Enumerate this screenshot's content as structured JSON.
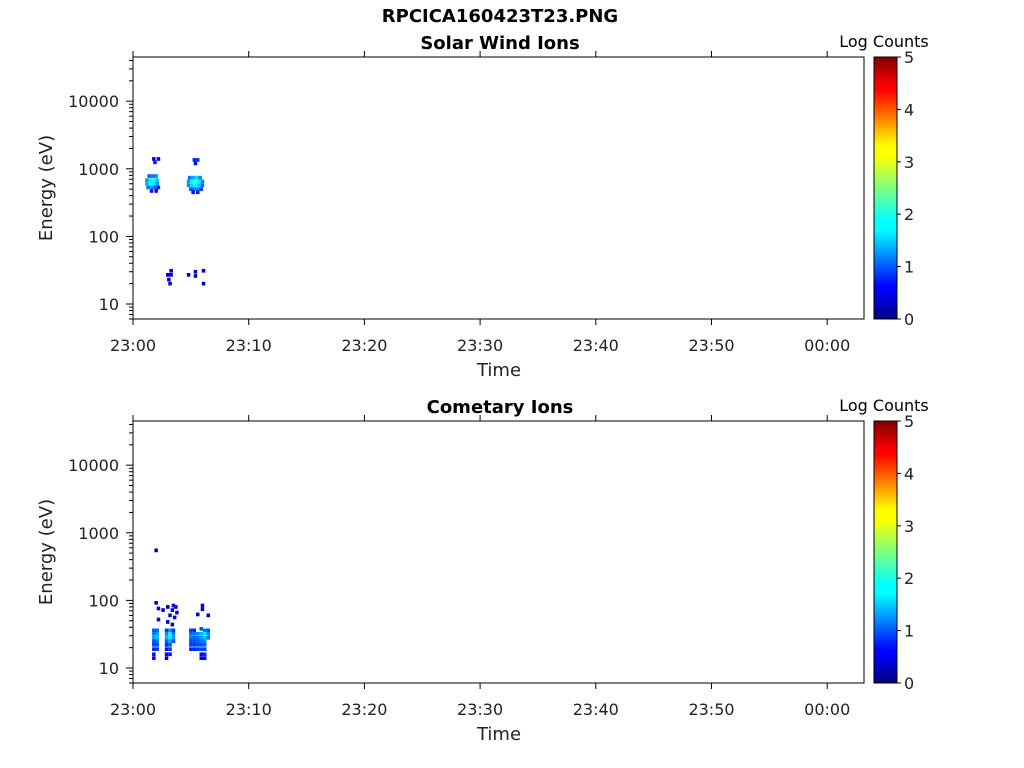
{
  "figure": {
    "title": "RPCICA160423T23.PNG"
  },
  "colors": {
    "frame": "#000000",
    "text": "#222222"
  },
  "chart_data": [
    {
      "type": "heatmap",
      "title": "Solar Wind Ions",
      "xlabel": "Time",
      "ylabel": "Energy (eV)",
      "x_ticks": [
        "23:00",
        "23:10",
        "23:20",
        "23:30",
        "23:40",
        "23:50",
        "00:00"
      ],
      "x_range_minutes": [
        0,
        63.5
      ],
      "y_scale": "log",
      "y_range": [
        6,
        45000
      ],
      "y_ticks": [
        10,
        100,
        1000,
        10000
      ],
      "y_tick_labels": [
        "10",
        "100",
        "1000",
        "10000"
      ],
      "colorbar": {
        "label": "Log Counts",
        "range": [
          0,
          5
        ],
        "ticks": [
          "0",
          "1",
          "2",
          "3",
          "4",
          "5"
        ],
        "colormap": "jet"
      },
      "cells": [
        [
          1.8,
          1400,
          0.5
        ],
        [
          2.2,
          1400,
          0.6
        ],
        [
          1.9,
          1250,
          0.7
        ],
        [
          1.4,
          780,
          1.1
        ],
        [
          1.7,
          780,
          1.2
        ],
        [
          2.0,
          780,
          1.3
        ],
        [
          1.2,
          680,
          1.4
        ],
        [
          1.5,
          680,
          1.8
        ],
        [
          1.8,
          680,
          1.9
        ],
        [
          2.1,
          680,
          1.6
        ],
        [
          1.2,
          600,
          1.5
        ],
        [
          1.5,
          600,
          2.0
        ],
        [
          1.8,
          600,
          1.8
        ],
        [
          2.1,
          600,
          1.4
        ],
        [
          1.3,
          530,
          1.2
        ],
        [
          1.6,
          530,
          1.4
        ],
        [
          1.9,
          530,
          1.1
        ],
        [
          2.2,
          530,
          0.8
        ],
        [
          1.6,
          470,
          0.7
        ],
        [
          2.0,
          470,
          0.6
        ],
        [
          5.3,
          1350,
          0.8
        ],
        [
          5.6,
          1350,
          0.9
        ],
        [
          5.4,
          1200,
          0.7
        ],
        [
          4.9,
          740,
          1.2
        ],
        [
          5.2,
          740,
          1.5
        ],
        [
          5.5,
          740,
          1.7
        ],
        [
          5.8,
          740,
          1.3
        ],
        [
          4.8,
          650,
          1.4
        ],
        [
          5.1,
          650,
          1.9
        ],
        [
          5.4,
          650,
          2.1
        ],
        [
          5.7,
          650,
          1.8
        ],
        [
          6.0,
          650,
          1.3
        ],
        [
          4.8,
          570,
          1.3
        ],
        [
          5.1,
          570,
          1.7
        ],
        [
          5.4,
          570,
          1.9
        ],
        [
          5.7,
          570,
          1.6
        ],
        [
          6.0,
          570,
          1.1
        ],
        [
          5.0,
          500,
          1.0
        ],
        [
          5.3,
          500,
          1.2
        ],
        [
          5.6,
          500,
          1.3
        ],
        [
          5.9,
          500,
          0.9
        ],
        [
          5.2,
          450,
          0.6
        ],
        [
          5.6,
          450,
          0.7
        ],
        [
          3.0,
          27,
          0.5
        ],
        [
          3.3,
          27,
          0.6
        ],
        [
          3.3,
          31,
          0.3
        ],
        [
          3.1,
          23,
          0.4
        ],
        [
          3.2,
          20,
          0.3
        ],
        [
          4.8,
          27,
          0.3
        ],
        [
          5.4,
          30,
          0.4
        ],
        [
          5.4,
          26,
          0.3
        ],
        [
          6.1,
          31,
          0.3
        ],
        [
          6.1,
          20,
          0.3
        ]
      ]
    },
    {
      "type": "heatmap",
      "title": "Cometary Ions",
      "xlabel": "Time",
      "ylabel": "Energy (eV)",
      "x_ticks": [
        "23:00",
        "23:10",
        "23:20",
        "23:30",
        "23:40",
        "23:50",
        "00:00"
      ],
      "x_range_minutes": [
        0,
        63.5
      ],
      "y_scale": "log",
      "y_range": [
        6,
        45000
      ],
      "y_ticks": [
        10,
        100,
        1000,
        10000
      ],
      "y_tick_labels": [
        "10",
        "100",
        "1000",
        "10000"
      ],
      "colorbar": {
        "label": "Log Counts",
        "range": [
          0,
          5
        ],
        "ticks": [
          "0",
          "1",
          "2",
          "3",
          "4",
          "5"
        ],
        "colormap": "jet"
      },
      "cells": [
        [
          2.0,
          550,
          0.3
        ],
        [
          2.0,
          92,
          0.4
        ],
        [
          2.2,
          76,
          0.3
        ],
        [
          2.6,
          72,
          0.3
        ],
        [
          3.0,
          80,
          0.3
        ],
        [
          3.5,
          84,
          0.4
        ],
        [
          3.7,
          80,
          0.5
        ],
        [
          3.4,
          72,
          0.4
        ],
        [
          3.8,
          66,
          0.3
        ],
        [
          3.2,
          60,
          0.4
        ],
        [
          3.6,
          56,
          0.5
        ],
        [
          2.2,
          52,
          0.3
        ],
        [
          3.0,
          48,
          0.3
        ],
        [
          3.4,
          44,
          0.4
        ],
        [
          6.0,
          84,
          0.5
        ],
        [
          6.0,
          74,
          0.4
        ],
        [
          5.6,
          62,
          0.4
        ],
        [
          6.5,
          60,
          0.3
        ],
        [
          1.8,
          36,
          1.0
        ],
        [
          2.1,
          36,
          1.1
        ],
        [
          2.9,
          36,
          0.9
        ],
        [
          3.2,
          36,
          1.3
        ],
        [
          3.5,
          36,
          0.9
        ],
        [
          1.8,
          32,
          1.2
        ],
        [
          2.1,
          32,
          1.4
        ],
        [
          2.9,
          32,
          1.3
        ],
        [
          3.2,
          32,
          1.9
        ],
        [
          3.5,
          32,
          1.2
        ],
        [
          1.8,
          28,
          1.4
        ],
        [
          2.1,
          28,
          1.6
        ],
        [
          2.9,
          28,
          1.5
        ],
        [
          3.2,
          28,
          1.8
        ],
        [
          3.5,
          28,
          1.4
        ],
        [
          1.8,
          25,
          1.0
        ],
        [
          2.1,
          25,
          1.2
        ],
        [
          2.9,
          25,
          1.1
        ],
        [
          3.2,
          25,
          1.4
        ],
        [
          3.5,
          25,
          1.0
        ],
        [
          1.8,
          22,
          0.9
        ],
        [
          2.1,
          22,
          1.0
        ],
        [
          2.9,
          22,
          0.8
        ],
        [
          3.2,
          22,
          1.0
        ],
        [
          1.8,
          19,
          0.8
        ],
        [
          2.1,
          19,
          0.9
        ],
        [
          2.9,
          19,
          0.7
        ],
        [
          3.2,
          19,
          0.9
        ],
        [
          1.8,
          16,
          0.7
        ],
        [
          2.9,
          16,
          0.6
        ],
        [
          3.2,
          16,
          0.7
        ],
        [
          1.8,
          14,
          0.6
        ],
        [
          2.9,
          14,
          0.5
        ],
        [
          5.0,
          36,
          0.9
        ],
        [
          5.3,
          36,
          0.8
        ],
        [
          5.9,
          38,
          1.0
        ],
        [
          6.2,
          36,
          1.2
        ],
        [
          6.5,
          36,
          1.0
        ],
        [
          5.0,
          32,
          1.1
        ],
        [
          5.3,
          32,
          1.2
        ],
        [
          5.6,
          32,
          1.3
        ],
        [
          5.9,
          32,
          1.5
        ],
        [
          6.2,
          32,
          1.8
        ],
        [
          6.5,
          32,
          1.3
        ],
        [
          5.0,
          28,
          1.2
        ],
        [
          5.3,
          28,
          1.1
        ],
        [
          5.6,
          28,
          1.2
        ],
        [
          5.9,
          28,
          1.4
        ],
        [
          6.2,
          28,
          1.6
        ],
        [
          6.5,
          28,
          1.2
        ],
        [
          5.0,
          25,
          1.0
        ],
        [
          5.3,
          25,
          1.0
        ],
        [
          5.6,
          25,
          1.1
        ],
        [
          5.9,
          25,
          1.2
        ],
        [
          6.2,
          25,
          1.3
        ],
        [
          5.0,
          22,
          0.9
        ],
        [
          5.3,
          22,
          0.9
        ],
        [
          5.6,
          22,
          1.0
        ],
        [
          5.9,
          22,
          1.0
        ],
        [
          6.2,
          22,
          1.1
        ],
        [
          5.0,
          19,
          0.8
        ],
        [
          5.3,
          19,
          0.8
        ],
        [
          5.6,
          19,
          0.9
        ],
        [
          5.9,
          19,
          1.0
        ],
        [
          6.2,
          19,
          0.9
        ],
        [
          5.9,
          16,
          0.7
        ],
        [
          6.2,
          16,
          0.8
        ],
        [
          5.9,
          14,
          0.6
        ],
        [
          6.2,
          14,
          0.6
        ]
      ]
    }
  ]
}
